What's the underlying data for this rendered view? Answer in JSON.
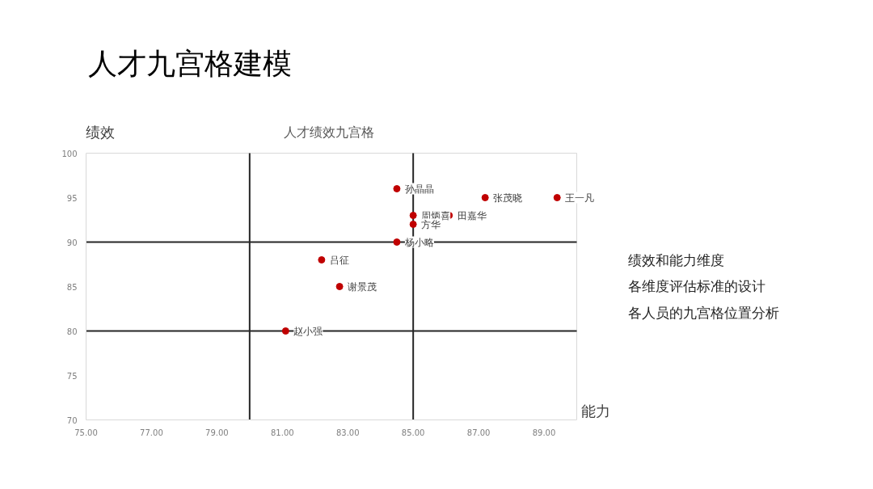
{
  "chart_data": {
    "type": "scatter",
    "title": "人才绩效九宫格",
    "subtitle": "人才九宫格建模",
    "xlabel": "能力",
    "ylabel": "绩效",
    "x": [
      84.5,
      87.2,
      89.4,
      85,
      86.1,
      85,
      84.5,
      82.2,
      82.75,
      81.1
    ],
    "values": [
      96,
      95,
      95,
      93,
      93,
      92,
      90,
      88,
      85,
      80
    ],
    "value_labels": [
      "孙晶晶",
      "张茂晓",
      "王一凡",
      "周炳喜",
      "田嘉华",
      "方华",
      "杨小略",
      "吕征",
      "谢景茂",
      "赵小强"
    ],
    "color": "#c00000",
    "marker": "circle",
    "grid": false,
    "legend": false,
    "xlim": [
      75,
      90
    ],
    "xticks": [
      {
        "value": 75,
        "label": "75.00"
      },
      {
        "value": 77,
        "label": "77.00"
      },
      {
        "value": 79,
        "label": "79.00"
      },
      {
        "value": 81,
        "label": "81.00"
      },
      {
        "value": 83,
        "label": "83.00"
      },
      {
        "value": 85,
        "label": "85.00"
      },
      {
        "value": 87,
        "label": "87.00"
      },
      {
        "value": 89,
        "label": "89.00"
      }
    ],
    "ylim": [
      70,
      100
    ],
    "yticks": [
      70,
      75,
      80,
      85,
      90,
      95,
      100
    ],
    "ref_lines": [
      {
        "axis": "x",
        "value": 80,
        "color": "#262626"
      },
      {
        "axis": "x",
        "value": 85,
        "color": "#262626"
      },
      {
        "axis": "y",
        "value": 80,
        "color": "#262626"
      },
      {
        "axis": "y",
        "value": 90,
        "color": "#262626"
      }
    ],
    "annotations": [
      "绩效和能力维度",
      "各维度评估标准的设计",
      "各人员的九宫格位置分析"
    ]
  }
}
